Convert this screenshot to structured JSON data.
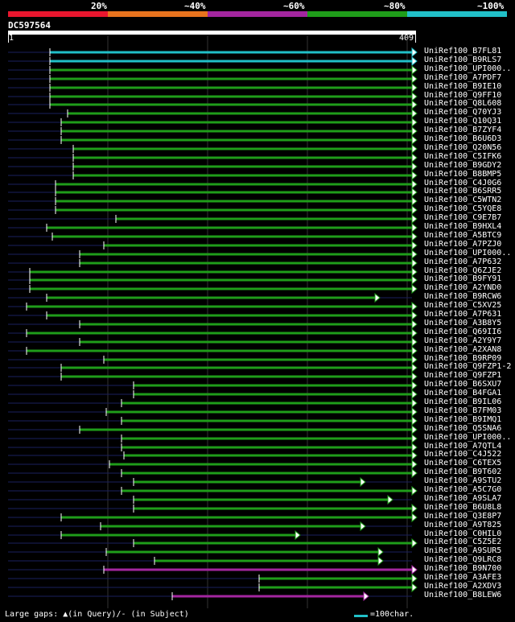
{
  "header": {
    "percent_labels": [
      "20%",
      "~40%",
      "~60%",
      "~80%",
      "~100%"
    ],
    "query_id": "DC597564",
    "query_start": "1",
    "query_end": "409"
  },
  "colors": {
    "band_20": "#e8162e",
    "band_40": "#e8731e",
    "band_60": "#a3269f",
    "band_80": "#1f9d1a",
    "band_100": "#21c0c8",
    "left_overhang": "#1a1f5e"
  },
  "hits": [
    "UniRef100_B7FL81",
    "UniRef100_B9RLS7",
    "UniRef100_UPI000..",
    "UniRef100_A7PDF7",
    "UniRef100_B9IE10",
    "UniRef100_Q9FF10",
    "UniRef100_Q8L608",
    "UniRef100_Q70YJ3",
    "UniRef100_Q10Q31",
    "UniRef100_B7ZYF4",
    "UniRef100_B6U6D3",
    "UniRef100_Q20N56",
    "UniRef100_C5IFK6",
    "UniRef100_B9GDY2",
    "UniRef100_B8BMP5",
    "UniRef100_C4J0G6",
    "UniRef100_B6SRR5",
    "UniRef100_C5WTN2",
    "UniRef100_C5YQE8",
    "UniRef100_C9E7B7",
    "UniRef100_B9HXL4",
    "UniRef100_A5BTC9",
    "UniRef100_A7PZJ0",
    "UniRef100_UPI000..",
    "UniRef100_A7P632",
    "UniRef100_Q6ZJE2",
    "UniRef100_B9FY91",
    "UniRef100_A2YND0",
    "UniRef100_B9RCW6",
    "UniRef100_C5XV25",
    "UniRef100_A7P631",
    "UniRef100_A3B8Y5",
    "UniRef100_Q69II6",
    "UniRef100_A2Y9Y7",
    "UniRef100_A2XAN8",
    "UniRef100_B9RP09",
    "UniRef100_Q9FZP1-2",
    "UniRef100_Q9FZP1",
    "UniRef100_B6SXU7",
    "UniRef100_B4FGA1",
    "UniRef100_B9IL06",
    "UniRef100_B7FM03",
    "UniRef100_B9IMQ1",
    "UniRef100_Q5SNA6",
    "UniRef100_UPI000..",
    "UniRef100_A7QTL4",
    "UniRef100_C4J522",
    "UniRef100_C6TEX5",
    "UniRef100_B9T602",
    "UniRef100_A9STU2",
    "UniRef100_A5C7G0",
    "UniRef100_A9SLA7",
    "UniRef100_B6U8L8",
    "UniRef100_Q3E8P7",
    "UniRef100_A9T825",
    "UniRef100_C0HIL0",
    "UniRef100_C5Z5E2",
    "UniRef100_A9SUR5",
    "UniRef100_Q9LRC8",
    "UniRef100_B9N700",
    "UniRef100_A3AFE3",
    "UniRef100_A2XDV3",
    "UniRef100_B8LEW6"
  ],
  "footer": {
    "gaps_text": "Large gaps: ▲(in Query)/- (in Subject)",
    "legend_text": "=100char."
  }
}
